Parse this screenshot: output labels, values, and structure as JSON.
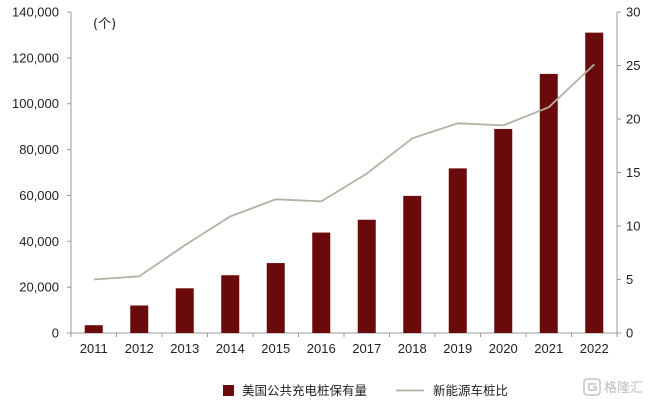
{
  "chart_data": {
    "type": "bar",
    "categories": [
      "2011",
      "2012",
      "2013",
      "2014",
      "2015",
      "2016",
      "2017",
      "2018",
      "2019",
      "2020",
      "2021",
      "2022"
    ],
    "series": [
      {
        "name": "美国公共充电桩保有量",
        "type": "bar",
        "axis": "left",
        "color": "#6b0a0a",
        "values": [
          3400,
          12000,
          19500,
          25200,
          30500,
          43800,
          49400,
          59800,
          71800,
          89000,
          113000,
          131000
        ]
      },
      {
        "name": "新能源车桩比",
        "type": "line",
        "axis": "right",
        "color": "#b2b2a4",
        "values": [
          5.0,
          5.3,
          8.2,
          10.9,
          12.5,
          12.3,
          14.9,
          18.2,
          19.6,
          19.4,
          21.1,
          25.1
        ]
      }
    ],
    "y_left": {
      "unit_label": "(个)",
      "min": 0,
      "max": 140000,
      "ticks": [
        0,
        20000,
        40000,
        60000,
        80000,
        100000,
        120000,
        140000
      ],
      "tick_labels": [
        "0",
        "20,000",
        "40,000",
        "60,000",
        "80,000",
        "100,000",
        "120,000",
        "140,000"
      ]
    },
    "y_right": {
      "min": 0,
      "max": 30,
      "ticks": [
        0,
        5,
        10,
        15,
        20,
        25,
        30
      ],
      "tick_labels": [
        "0",
        "5",
        "10",
        "15",
        "20",
        "25",
        "30"
      ]
    },
    "grid": false,
    "legend_position": "bottom-center"
  },
  "watermark": {
    "text": "格隆汇",
    "icon": "glh-logo-icon"
  }
}
